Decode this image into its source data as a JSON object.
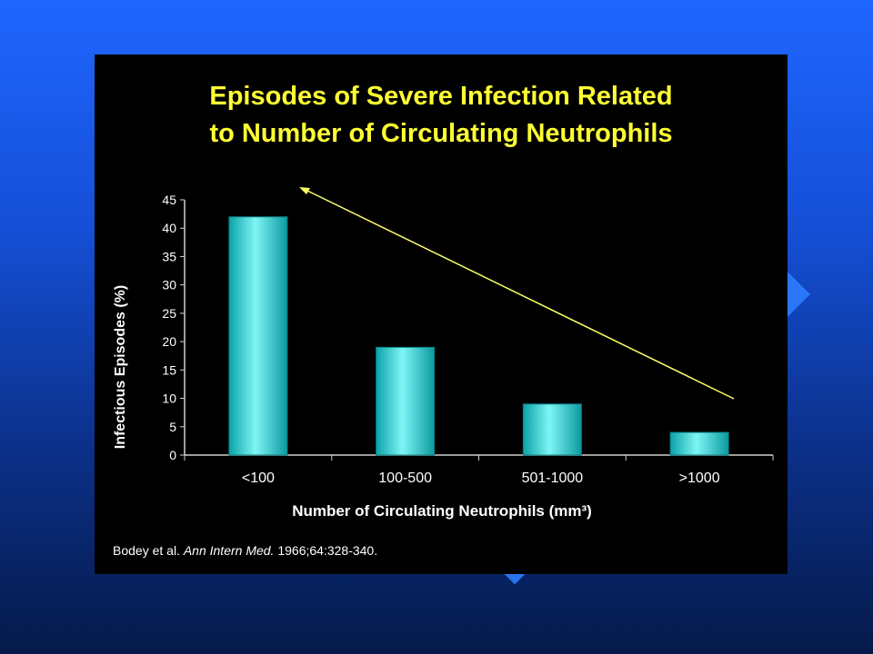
{
  "chart_data": {
    "type": "bar",
    "title": [
      "Episodes of Severe Infection Related",
      "to Number of Circulating Neutrophils"
    ],
    "categories": [
      "<100",
      "100-500",
      "501-1000",
      ">1000"
    ],
    "values": [
      42,
      19,
      9,
      4
    ],
    "xlabel": "Number of Circulating Neutrophils (mm³)",
    "ylabel": "Infectious Episodes (%)",
    "ylim": [
      0,
      45
    ],
    "yticks": [
      0,
      5,
      10,
      15,
      20,
      25,
      30,
      35,
      40,
      45
    ],
    "grid": false,
    "legend": "none",
    "bar_color": "#18d8d8",
    "annotation": "arrow"
  },
  "citation": {
    "authors": "Bodey et al.",
    "journal": "Ann Intern Med.",
    "details": "1966;64:328-340."
  },
  "colors": {
    "title": "#ffff33",
    "arrow": "#ffff66",
    "panel": "#000000",
    "text": "#ffffff"
  }
}
